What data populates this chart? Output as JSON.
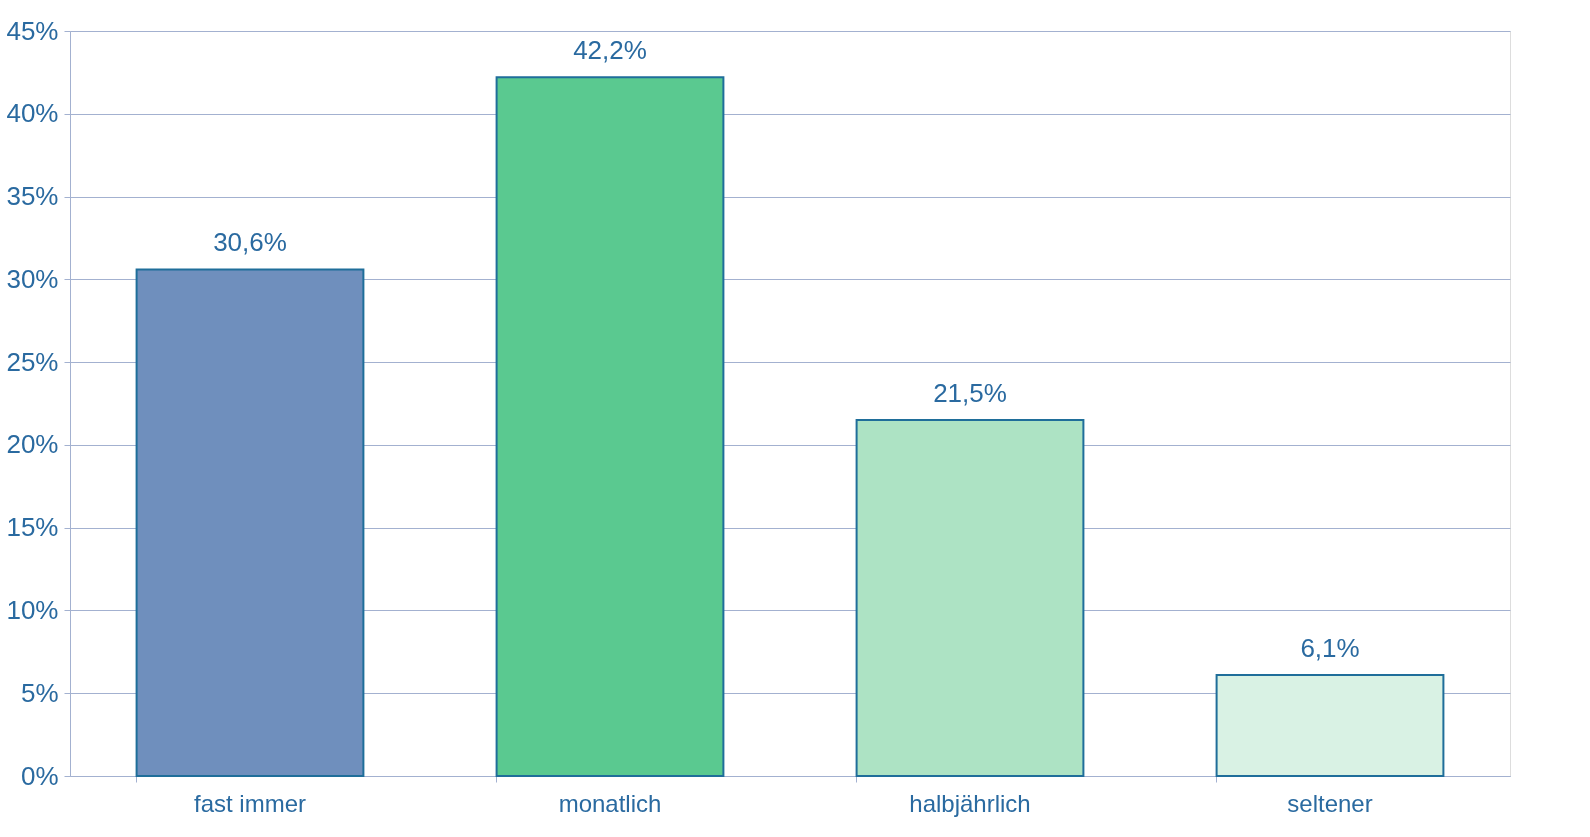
{
  "chart_data": {
    "type": "bar",
    "categories": [
      "fast immer",
      "monatlich",
      "halbjährlich",
      "seltener"
    ],
    "values": [
      30.6,
      42.2,
      21.5,
      6.1
    ],
    "colors": [
      "#6f8fbd",
      "#5ac990",
      "#ade3c4",
      "#d9f2e4"
    ],
    "value_labels": [
      "30,6%",
      "42,2%",
      "21,5%",
      "6,1%"
    ],
    "ylim": [
      0,
      45
    ],
    "yticks": [
      {
        "value": 0,
        "label": "0%"
      },
      {
        "value": 5,
        "label": "5%"
      },
      {
        "value": 10,
        "label": "10%"
      },
      {
        "value": 15,
        "label": "15%"
      },
      {
        "value": 20,
        "label": "20%"
      },
      {
        "value": 25,
        "label": "25%"
      },
      {
        "value": 30,
        "label": "30%"
      },
      {
        "value": 35,
        "label": "35%"
      },
      {
        "value": 40,
        "label": "40%"
      },
      {
        "value": 45,
        "label": "45%"
      }
    ],
    "grid": "y"
  }
}
